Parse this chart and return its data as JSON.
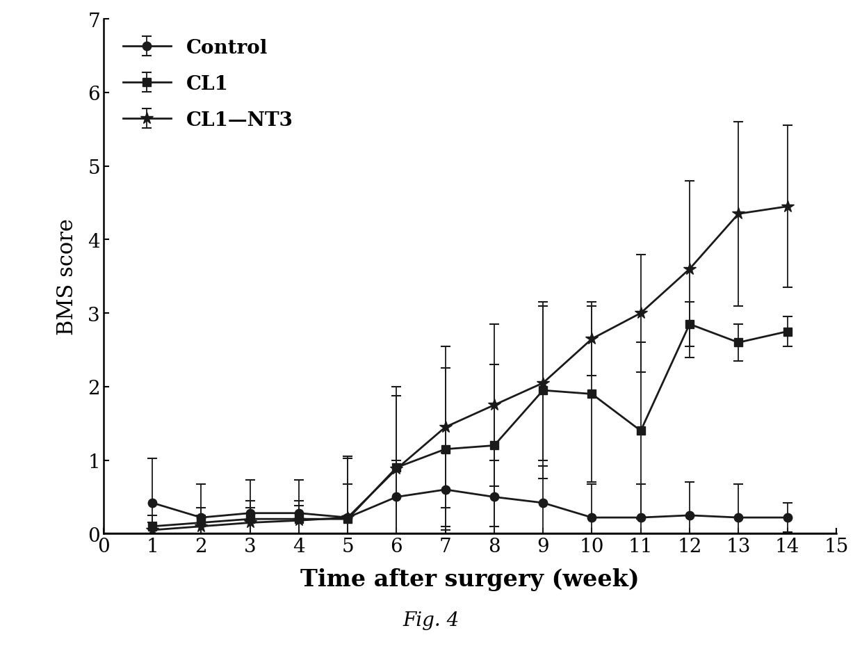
{
  "weeks": [
    1,
    2,
    3,
    4,
    5,
    6,
    7,
    8,
    9,
    10,
    11,
    12,
    13,
    14
  ],
  "control_mean": [
    0.42,
    0.22,
    0.28,
    0.28,
    0.22,
    0.5,
    0.6,
    0.5,
    0.42,
    0.22,
    0.22,
    0.25,
    0.22,
    0.22
  ],
  "control_err": [
    0.6,
    0.45,
    0.45,
    0.45,
    0.45,
    0.5,
    0.5,
    0.5,
    0.5,
    0.45,
    0.45,
    0.45,
    0.45,
    0.2
  ],
  "cl1_mean": [
    0.1,
    0.15,
    0.2,
    0.2,
    0.2,
    0.9,
    1.15,
    1.2,
    1.95,
    1.9,
    1.4,
    2.85,
    2.6,
    2.75
  ],
  "cl1_err": [
    0.15,
    0.2,
    0.25,
    0.25,
    0.85,
    1.1,
    1.1,
    1.1,
    1.2,
    1.2,
    1.2,
    0.3,
    0.25,
    0.2
  ],
  "cl1nt3_mean": [
    0.05,
    0.1,
    0.15,
    0.18,
    0.22,
    0.88,
    1.45,
    1.75,
    2.05,
    2.65,
    3.0,
    3.6,
    4.35,
    4.45
  ],
  "cl1nt3_err": [
    0.1,
    0.15,
    0.2,
    0.2,
    0.8,
    1.0,
    1.1,
    1.1,
    1.05,
    0.5,
    0.8,
    1.2,
    1.25,
    1.1
  ],
  "xlabel": "Time after surgery (week)",
  "ylabel": "BMS score",
  "xlim": [
    0,
    15
  ],
  "ylim": [
    0,
    7
  ],
  "xticks": [
    0,
    1,
    2,
    3,
    4,
    5,
    6,
    7,
    8,
    9,
    10,
    11,
    12,
    13,
    14,
    15
  ],
  "yticks": [
    0,
    1,
    2,
    3,
    4,
    5,
    6,
    7
  ],
  "legend_labels": [
    "Control",
    "CL1",
    "CL1—NT3"
  ],
  "fig_label": "Fig. 4",
  "line_color": "#1a1a1a",
  "background_color": "#ffffff",
  "xlabel_fontsize": 24,
  "ylabel_fontsize": 22,
  "tick_fontsize": 20,
  "legend_fontsize": 20,
  "fig_label_fontsize": 20,
  "linewidth": 2.0,
  "markersize": 9,
  "capsize": 5
}
